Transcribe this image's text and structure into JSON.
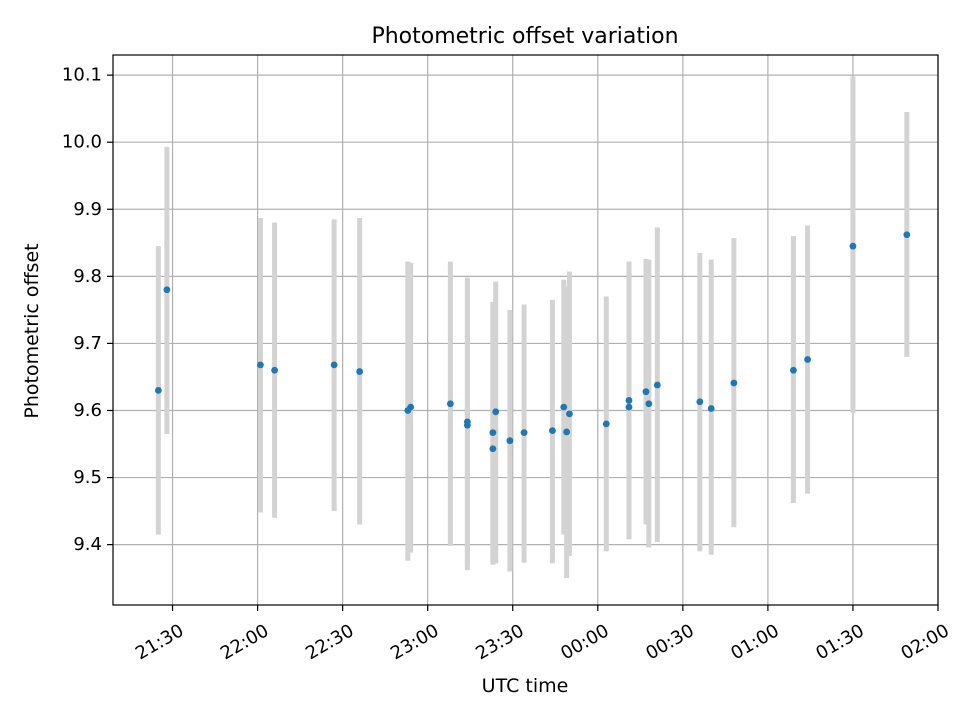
{
  "chart_data": {
    "type": "scatter",
    "title": "Photometric offset variation",
    "xlabel": "UTC time",
    "ylabel": "Photometric offset",
    "grid": true,
    "colors": {
      "point": "#1f77b4",
      "errorbar": "#d3d3d3",
      "grid": "#b0b0b0"
    },
    "xlim": [
      "21:09",
      "02:00"
    ],
    "ylim": [
      9.31,
      10.13
    ],
    "x_ticks": [
      "21:30",
      "22:00",
      "22:30",
      "23:00",
      "23:30",
      "00:00",
      "00:30",
      "01:00",
      "01:30",
      "02:00"
    ],
    "y_ticks": [
      "9.4",
      "9.5",
      "9.6",
      "9.7",
      "9.8",
      "9.9",
      "10.0",
      "10.1"
    ],
    "series": [
      {
        "points": [
          {
            "x": "21:25",
            "y": 9.63,
            "lo": 9.415,
            "hi": 9.845
          },
          {
            "x": "21:28",
            "y": 9.78,
            "lo": 9.565,
            "hi": 9.993
          },
          {
            "x": "22:01",
            "y": 9.668,
            "lo": 9.448,
            "hi": 9.887
          },
          {
            "x": "22:06",
            "y": 9.66,
            "lo": 9.44,
            "hi": 9.88
          },
          {
            "x": "22:27",
            "y": 9.668,
            "lo": 9.45,
            "hi": 9.885
          },
          {
            "x": "22:36",
            "y": 9.658,
            "lo": 9.43,
            "hi": 9.887
          },
          {
            "x": "22:53",
            "y": 9.6,
            "lo": 9.376,
            "hi": 9.822
          },
          {
            "x": "22:54",
            "y": 9.605,
            "lo": 9.388,
            "hi": 9.82
          },
          {
            "x": "23:08",
            "y": 9.61,
            "lo": 9.398,
            "hi": 9.822
          },
          {
            "x": "23:14",
            "y": 9.578,
            "lo": 9.362,
            "hi": 9.798
          },
          {
            "x": "23:14",
            "y": 9.583,
            "lo": 9.368,
            "hi": 9.795
          },
          {
            "x": "23:23",
            "y": 9.543,
            "lo": 9.37,
            "hi": 9.758
          },
          {
            "x": "23:23",
            "y": 9.567,
            "lo": 9.375,
            "hi": 9.762
          },
          {
            "x": "23:24",
            "y": 9.598,
            "lo": 9.372,
            "hi": 9.792
          },
          {
            "x": "23:29",
            "y": 9.555,
            "lo": 9.36,
            "hi": 9.75
          },
          {
            "x": "23:34",
            "y": 9.567,
            "lo": 9.373,
            "hi": 9.758
          },
          {
            "x": "23:44",
            "y": 9.57,
            "lo": 9.372,
            "hi": 9.765
          },
          {
            "x": "23:48",
            "y": 9.605,
            "lo": 9.415,
            "hi": 9.795
          },
          {
            "x": "23:49",
            "y": 9.568,
            "lo": 9.35,
            "hi": 9.785
          },
          {
            "x": "23:50",
            "y": 9.595,
            "lo": 9.383,
            "hi": 9.807
          },
          {
            "x": "00:03",
            "y": 9.58,
            "lo": 9.39,
            "hi": 9.77
          },
          {
            "x": "00:11",
            "y": 9.615,
            "lo": 9.408,
            "hi": 9.822
          },
          {
            "x": "00:11",
            "y": 9.605,
            "lo": 9.408,
            "hi": 9.822
          },
          {
            "x": "00:17",
            "y": 9.628,
            "lo": 9.43,
            "hi": 9.826
          },
          {
            "x": "00:18",
            "y": 9.61,
            "lo": 9.396,
            "hi": 9.825
          },
          {
            "x": "00:21",
            "y": 9.638,
            "lo": 9.404,
            "hi": 9.873
          },
          {
            "x": "00:36",
            "y": 9.613,
            "lo": 9.39,
            "hi": 9.835
          },
          {
            "x": "00:40",
            "y": 9.603,
            "lo": 9.385,
            "hi": 9.825
          },
          {
            "x": "00:48",
            "y": 9.641,
            "lo": 9.426,
            "hi": 9.857
          },
          {
            "x": "01:09",
            "y": 9.66,
            "lo": 9.462,
            "hi": 9.86
          },
          {
            "x": "01:14",
            "y": 9.676,
            "lo": 9.476,
            "hi": 9.876
          },
          {
            "x": "01:30",
            "y": 9.845,
            "lo": 9.596,
            "hi": 10.098
          },
          {
            "x": "01:49",
            "y": 9.862,
            "lo": 9.68,
            "hi": 10.045
          }
        ]
      }
    ]
  }
}
